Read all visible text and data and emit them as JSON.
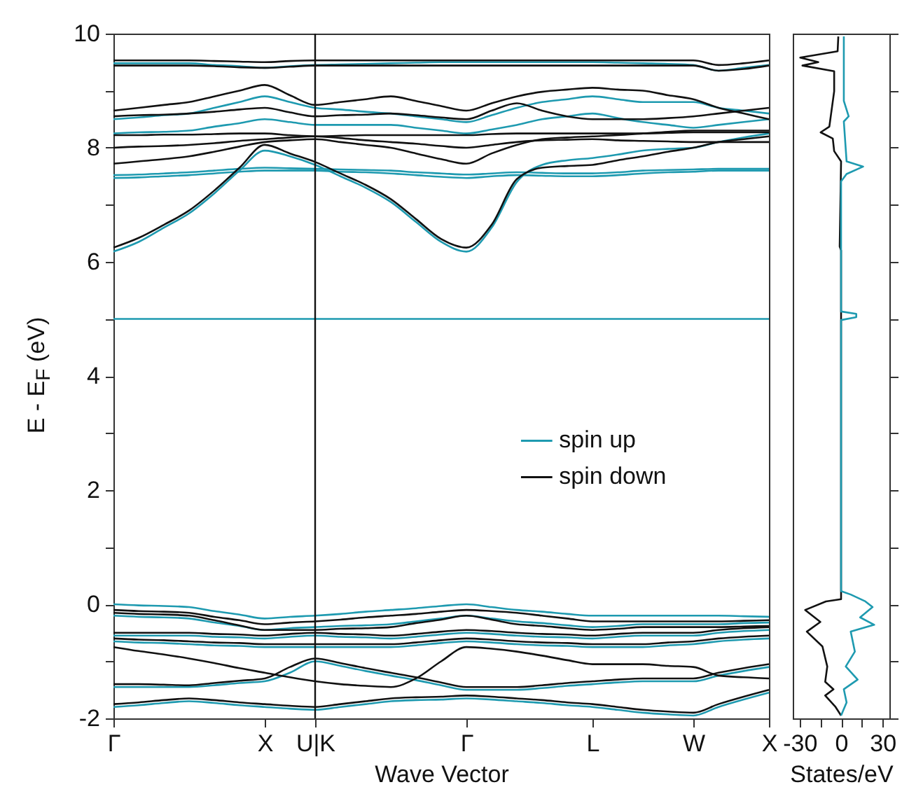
{
  "chart_data": [
    {
      "type": "line",
      "xlabel": "Wave Vector",
      "ylabel": "E - E$_{F}$ (eV)",
      "legend": "right",
      "categories": [
        "Γ",
        null,
        null,
        null,
        null,
        null,
        "X",
        null,
        "U|K",
        null,
        null,
        null,
        null,
        null,
        "Γ",
        null,
        null,
        null,
        null,
        "L",
        null,
        null,
        null,
        "W",
        null,
        null,
        "X"
      ],
      "ylim": [
        -2,
        10
      ],
      "yticks": [
        -2,
        {
          "value": -1,
          "label": null
        },
        0,
        {
          "value": 1,
          "label": null
        },
        2,
        {
          "value": 3,
          "label": null
        },
        4,
        {
          "value": 5,
          "label": null
        },
        6,
        {
          "value": 7,
          "label": null
        },
        8,
        {
          "value": 9,
          "label": null
        },
        10
      ],
      "ref_lines": [
        {
          "axis": "x",
          "value": "U|K",
          "color": "#111111"
        }
      ],
      "series": [
        {
          "name": "spin up",
          "color": "#1e9ab0",
          "values": [
            0,
            -0.02,
            -0.03,
            -0.05,
            -0.12,
            -0.18,
            -0.25,
            -0.22,
            -0.2,
            -0.17,
            -0.13,
            -0.1,
            -0.07,
            -0.03,
            0,
            -0.05,
            -0.1,
            -0.13,
            -0.17,
            -0.2,
            -0.2,
            -0.2,
            -0.2,
            -0.2,
            -0.2,
            -0.21,
            -0.22
          ]
        },
        {
          "color": "#1e9ab0",
          "values": [
            -0.2,
            -0.22,
            -0.23,
            -0.25,
            -0.32,
            -0.38,
            -0.45,
            -0.42,
            -0.4,
            -0.38,
            -0.37,
            -0.35,
            -0.3,
            -0.25,
            -0.2,
            -0.25,
            -0.3,
            -0.33,
            -0.37,
            -0.4,
            -0.38,
            -0.35,
            -0.35,
            -0.35,
            -0.35,
            -0.33,
            -0.32
          ]
        },
        {
          "color": "#1e9ab0",
          "values": [
            -0.55,
            -0.55,
            -0.55,
            -0.55,
            -0.57,
            -0.58,
            -0.6,
            -0.57,
            -0.55,
            -0.57,
            -0.58,
            -0.6,
            -0.57,
            -0.53,
            -0.5,
            -0.52,
            -0.55,
            -0.57,
            -0.58,
            -0.6,
            -0.57,
            -0.55,
            -0.55,
            -0.55,
            -0.5,
            -0.47,
            -0.45
          ]
        },
        {
          "color": "#1e9ab0",
          "values": [
            -0.65,
            -0.67,
            -0.68,
            -0.7,
            -0.72,
            -0.73,
            -0.75,
            -0.75,
            -0.75,
            -0.75,
            -0.75,
            -0.75,
            -0.72,
            -0.68,
            -0.65,
            -0.67,
            -0.7,
            -0.72,
            -0.73,
            -0.75,
            -0.75,
            -0.75,
            -0.72,
            -0.7,
            -0.65,
            -0.62,
            -0.6
          ]
        },
        {
          "color": "#1e9ab0",
          "values": [
            -1.45,
            -1.45,
            -1.45,
            -1.45,
            -1.42,
            -1.38,
            -1.35,
            -1.2,
            -1.0,
            -1.08,
            -1.17,
            -1.25,
            -1.33,
            -1.42,
            -1.5,
            -1.5,
            -1.5,
            -1.47,
            -1.43,
            -1.4,
            -1.37,
            -1.35,
            -1.35,
            -1.35,
            -1.25,
            -1.17,
            -1.1
          ]
        },
        {
          "color": "#1e9ab0",
          "values": [
            -1.8,
            -1.77,
            -1.73,
            -1.7,
            -1.73,
            -1.77,
            -1.8,
            -1.83,
            -1.85,
            -1.8,
            -1.75,
            -1.7,
            -1.68,
            -1.67,
            -1.65,
            -1.67,
            -1.7,
            -1.73,
            -1.77,
            -1.8,
            -1.85,
            -1.9,
            -1.93,
            -1.95,
            -1.8,
            -1.67,
            -1.55
          ]
        },
        {
          "color": "#1e9ab0",
          "values": [
            5,
            5,
            5,
            5,
            5,
            5,
            5,
            5,
            5,
            5,
            5,
            5,
            5,
            5,
            5,
            5,
            5,
            5,
            5,
            5,
            5,
            5,
            5,
            5,
            5,
            5,
            5
          ]
        },
        {
          "color": "#1e9ab0",
          "values": [
            6.18,
            6.35,
            6.6,
            6.85,
            7.2,
            7.6,
            7.95,
            7.85,
            7.7,
            7.5,
            7.3,
            7.05,
            6.7,
            6.35,
            6.18,
            6.6,
            7.4,
            7.7,
            7.78,
            7.82,
            7.88,
            7.95,
            7.98,
            8.0,
            8.1,
            8.18,
            8.25
          ]
        },
        {
          "color": "#1e9ab0",
          "values": [
            7.47,
            7.48,
            7.5,
            7.52,
            7.55,
            7.58,
            7.6,
            7.6,
            7.6,
            7.58,
            7.57,
            7.55,
            7.52,
            7.49,
            7.47,
            7.5,
            7.52,
            7.51,
            7.5,
            7.5,
            7.52,
            7.55,
            7.57,
            7.58,
            7.6,
            7.6,
            7.6
          ]
        },
        {
          "color": "#1e9ab0",
          "values": [
            7.52,
            7.53,
            7.55,
            7.57,
            7.6,
            7.63,
            7.65,
            7.64,
            7.63,
            7.62,
            7.61,
            7.6,
            7.57,
            7.55,
            7.53,
            7.55,
            7.57,
            7.56,
            7.55,
            7.55,
            7.57,
            7.6,
            7.61,
            7.62,
            7.63,
            7.63,
            7.63
          ]
        },
        {
          "color": "#1e9ab0",
          "values": [
            8.25,
            8.27,
            8.28,
            8.3,
            8.37,
            8.43,
            8.5,
            8.45,
            8.4,
            8.4,
            8.4,
            8.4,
            8.35,
            8.3,
            8.25,
            8.32,
            8.4,
            8.5,
            8.55,
            8.6,
            8.52,
            8.45,
            8.4,
            8.35,
            8.4,
            8.45,
            8.5
          ]
        },
        {
          "color": "#1e9ab0",
          "values": [
            8.5,
            8.53,
            8.57,
            8.6,
            8.7,
            8.8,
            8.9,
            8.8,
            8.7,
            8.67,
            8.63,
            8.6,
            8.55,
            8.5,
            8.45,
            8.57,
            8.7,
            8.8,
            8.85,
            8.9,
            8.85,
            8.8,
            8.8,
            8.8,
            8.7,
            8.65,
            8.6
          ]
        },
        {
          "color": "#1e9ab0",
          "values": [
            9.48,
            9.48,
            9.48,
            9.48,
            9.45,
            9.43,
            9.4,
            9.43,
            9.45,
            9.46,
            9.47,
            9.48,
            9.49,
            9.5,
            9.5,
            9.5,
            9.5,
            9.5,
            9.5,
            9.5,
            9.49,
            9.48,
            9.47,
            9.45,
            9.35,
            9.4,
            9.45
          ]
        },
        {
          "name": "spin down",
          "color": "#111111",
          "values": [
            -0.1,
            -0.12,
            -0.13,
            -0.15,
            -0.22,
            -0.28,
            -0.35,
            -0.32,
            -0.3,
            -0.27,
            -0.23,
            -0.2,
            -0.17,
            -0.13,
            -0.1,
            -0.12,
            -0.15,
            -0.2,
            -0.25,
            -0.3,
            -0.3,
            -0.3,
            -0.3,
            -0.3,
            -0.3,
            -0.29,
            -0.28
          ]
        },
        {
          "color": "#111111",
          "values": [
            -0.15,
            -0.17,
            -0.18,
            -0.2,
            -0.28,
            -0.37,
            -0.45,
            -0.45,
            -0.45,
            -0.43,
            -0.42,
            -0.4,
            -0.33,
            -0.27,
            -0.2,
            -0.27,
            -0.35,
            -0.38,
            -0.42,
            -0.45,
            -0.43,
            -0.4,
            -0.4,
            -0.4,
            -0.4,
            -0.39,
            -0.38
          ]
        },
        {
          "color": "#111111",
          "values": [
            -0.5,
            -0.5,
            -0.5,
            -0.5,
            -0.52,
            -0.53,
            -0.55,
            -0.52,
            -0.5,
            -0.52,
            -0.53,
            -0.55,
            -0.52,
            -0.48,
            -0.45,
            -0.47,
            -0.5,
            -0.52,
            -0.53,
            -0.55,
            -0.52,
            -0.5,
            -0.5,
            -0.5,
            -0.45,
            -0.42,
            -0.4
          ]
        },
        {
          "color": "#111111",
          "values": [
            -0.6,
            -0.62,
            -0.63,
            -0.65,
            -0.67,
            -0.68,
            -0.7,
            -0.7,
            -0.7,
            -0.7,
            -0.7,
            -0.7,
            -0.67,
            -0.63,
            -0.6,
            -0.62,
            -0.65,
            -0.67,
            -0.68,
            -0.7,
            -0.7,
            -0.7,
            -0.67,
            -0.65,
            -0.6,
            -0.57,
            -0.55
          ]
        },
        {
          "color": "#111111",
          "values": [
            -0.75,
            -0.82,
            -0.88,
            -0.95,
            -1.03,
            -1.12,
            -1.2,
            -1.28,
            -1.35,
            -1.4,
            -1.43,
            -1.45,
            -1.3,
            -1.0,
            -0.75,
            -0.78,
            -0.83,
            -0.9,
            -0.98,
            -1.05,
            -1.05,
            -1.05,
            -1.08,
            -1.1,
            -1.25,
            -1.28,
            -1.3
          ]
        },
        {
          "color": "#111111",
          "values": [
            -1.4,
            -1.4,
            -1.41,
            -1.42,
            -1.38,
            -1.34,
            -1.3,
            -1.1,
            -0.95,
            -1.03,
            -1.12,
            -1.2,
            -1.28,
            -1.37,
            -1.45,
            -1.45,
            -1.45,
            -1.42,
            -1.38,
            -1.35,
            -1.32,
            -1.3,
            -1.3,
            -1.3,
            -1.2,
            -1.12,
            -1.05
          ]
        },
        {
          "color": "#111111",
          "values": [
            -1.75,
            -1.72,
            -1.68,
            -1.65,
            -1.68,
            -1.72,
            -1.75,
            -1.78,
            -1.8,
            -1.75,
            -1.7,
            -1.65,
            -1.63,
            -1.62,
            -1.6,
            -1.62,
            -1.65,
            -1.68,
            -1.72,
            -1.75,
            -1.8,
            -1.85,
            -1.88,
            -1.9,
            -1.75,
            -1.62,
            -1.5
          ]
        },
        {
          "color": "#111111",
          "values": [
            6.25,
            6.42,
            6.65,
            6.9,
            7.25,
            7.65,
            8.05,
            7.9,
            7.75,
            7.55,
            7.35,
            7.1,
            6.75,
            6.4,
            6.25,
            6.65,
            7.45,
            7.65,
            7.68,
            7.7,
            7.78,
            7.85,
            7.93,
            8.0,
            8.1,
            8.15,
            8.2
          ]
        },
        {
          "color": "#111111",
          "values": [
            7.72,
            7.76,
            7.8,
            7.85,
            7.93,
            8.02,
            8.1,
            8.13,
            8.15,
            8.1,
            8.05,
            8.0,
            7.9,
            7.8,
            7.72,
            7.9,
            8.05,
            8.15,
            8.18,
            8.2,
            8.22,
            8.25,
            8.28,
            8.3,
            8.3,
            8.3,
            8.3
          ]
        },
        {
          "color": "#111111",
          "values": [
            8.22,
            8.22,
            8.23,
            8.23,
            8.24,
            8.25,
            8.25,
            8.22,
            8.2,
            8.21,
            8.22,
            8.22,
            8.22,
            8.22,
            8.22,
            8.24,
            8.25,
            8.25,
            8.25,
            8.25,
            8.25,
            8.25,
            8.26,
            8.27,
            8.27,
            8.27,
            8.27
          ]
        },
        {
          "color": "#111111",
          "values": [
            8.0,
            8.02,
            8.03,
            8.05,
            8.08,
            8.12,
            8.15,
            8.18,
            8.2,
            8.17,
            8.13,
            8.1,
            8.07,
            8.03,
            8.0,
            8.05,
            8.1,
            8.13,
            8.14,
            8.15,
            8.13,
            8.12,
            8.11,
            8.1,
            8.1,
            8.1,
            8.1
          ]
        },
        {
          "color": "#111111",
          "values": [
            8.55,
            8.57,
            8.58,
            8.6,
            8.63,
            8.67,
            8.7,
            8.62,
            8.55,
            8.57,
            8.58,
            8.6,
            8.57,
            8.53,
            8.5,
            8.65,
            8.78,
            8.65,
            8.55,
            8.5,
            8.5,
            8.5,
            8.52,
            8.55,
            8.6,
            8.65,
            8.7
          ]
        },
        {
          "color": "#111111",
          "values": [
            8.65,
            8.7,
            8.75,
            8.8,
            8.9,
            9.0,
            9.1,
            8.92,
            8.75,
            8.8,
            8.85,
            8.9,
            8.82,
            8.73,
            8.65,
            8.78,
            8.9,
            8.98,
            9.02,
            9.05,
            9.02,
            9.0,
            8.92,
            8.85,
            8.7,
            8.6,
            8.5
          ]
        },
        {
          "color": "#111111",
          "values": [
            9.53,
            9.53,
            9.53,
            9.53,
            9.52,
            9.51,
            9.5,
            9.52,
            9.53,
            9.53,
            9.53,
            9.53,
            9.53,
            9.53,
            9.53,
            9.53,
            9.53,
            9.53,
            9.53,
            9.53,
            9.53,
            9.53,
            9.53,
            9.53,
            9.45,
            9.48,
            9.53
          ]
        },
        {
          "color": "#111111",
          "values": [
            9.44,
            9.44,
            9.44,
            9.44,
            9.43,
            9.41,
            9.4,
            9.42,
            9.44,
            9.44,
            9.44,
            9.44,
            9.44,
            9.44,
            9.44,
            9.44,
            9.44,
            9.44,
            9.44,
            9.44,
            9.44,
            9.44,
            9.44,
            9.44,
            9.35,
            9.38,
            9.44
          ]
        }
      ]
    },
    {
      "type": "line",
      "xlabel": "States/eV",
      "tick_labels": "x",
      "xlim": [
        -35,
        35
      ],
      "xticks": [
        -30,
        {
          "value": -15,
          "label": null
        },
        0,
        {
          "value": 15,
          "label": null
        },
        30
      ],
      "ylim": [
        -2,
        10
      ],
      "yticks": [
        -2,
        -1,
        0,
        1,
        2,
        3,
        4,
        5,
        6,
        7,
        8,
        9,
        10
      ],
      "series": [
        {
          "color": "#111111",
          "x": [
            -2,
            -2.5,
            -29.6,
            -16.5,
            -28,
            -5,
            -5,
            -8.5,
            -14.8,
            -6,
            -5,
            0,
            -1,
            0,
            0,
            -11,
            -26,
            -15,
            -24.8,
            -13.5,
            -10,
            -11.5,
            -5.5,
            -11.5,
            -4,
            0
          ],
          "values": [
            9.95,
            9.69,
            9.58,
            9.5,
            9.44,
            9.34,
            8.99,
            8.37,
            8.27,
            8.16,
            7.94,
            7.76,
            6.27,
            6.2,
            0.09,
            0.05,
            -0.1,
            -0.31,
            -0.48,
            -0.74,
            -1.09,
            -1.36,
            -1.49,
            -1.6,
            -1.8,
            -1.95
          ]
        },
        {
          "color": "#1e9ab0",
          "x": [
            2,
            2,
            5.5,
            2,
            4,
            16,
            4,
            0,
            0,
            11,
            11,
            0,
            0,
            7,
            17.6,
            22.8,
            13.8,
            24,
            7,
            10,
            3.4,
            12,
            2,
            4,
            0
          ],
          "values": [
            9.95,
            8.82,
            8.55,
            8.46,
            7.76,
            7.67,
            7.54,
            7.41,
            5.13,
            5.09,
            5.03,
            4.98,
            0.23,
            0.17,
            0.05,
            -0.05,
            -0.23,
            -0.36,
            -0.48,
            -0.83,
            -1.09,
            -1.32,
            -1.49,
            -1.72,
            -1.95
          ]
        }
      ]
    }
  ]
}
